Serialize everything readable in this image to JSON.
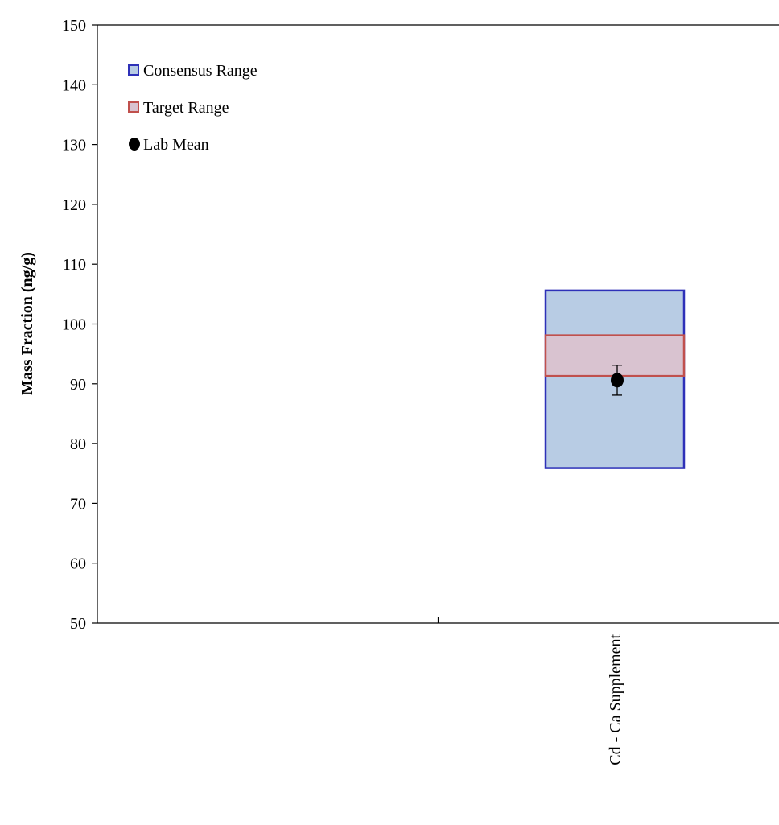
{
  "chart_data": {
    "type": "range-box with error bar",
    "title": "",
    "xlabel": "",
    "ylabel": "Mass Fraction (ng/g)",
    "ylim": [
      50,
      150
    ],
    "yticks": [
      50,
      60,
      70,
      80,
      90,
      100,
      110,
      120,
      130,
      140,
      150
    ],
    "grid": false,
    "legend_position": "top-left",
    "categories": [
      "Cd - Ca Supplement"
    ],
    "series": [
      {
        "name": "Consensus Range",
        "kind": "range",
        "low": [
          75.9
        ],
        "high": [
          105.6
        ],
        "fill": "#b8cce4",
        "stroke": "#2e31b8"
      },
      {
        "name": "Target Range",
        "kind": "range",
        "low": [
          91.3
        ],
        "high": [
          98.1
        ],
        "fill": "#d9c3d0",
        "stroke": "#c0504d"
      },
      {
        "name": "Lab Mean",
        "kind": "point",
        "values": [
          90.6
        ],
        "error_low": [
          88.1
        ],
        "error_high": [
          93.1
        ],
        "color": "#000000"
      }
    ]
  }
}
